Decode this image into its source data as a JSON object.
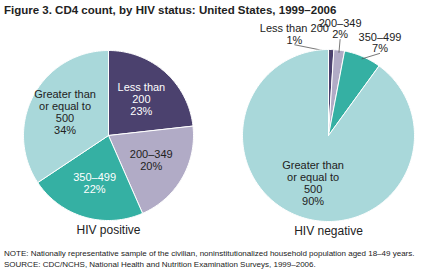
{
  "figure": {
    "title": "Figure 3. CD4 count, by HIV status: United States, 1999–2006",
    "notes": [
      "NOTE: Nationally representative sample of the civilian, noninstitutionalized household population aged 18–49 years.",
      "SOURCE: CDC/NCHS, National Health and Nutrition Examination Surveys, 1999–2006."
    ]
  },
  "chart_data": [
    {
      "type": "pie",
      "title": "HIV positive",
      "categories": [
        "Less than 200",
        "200–349",
        "350–499",
        "Greater than or equal to 500"
      ],
      "values": [
        23,
        20,
        22,
        34
      ],
      "value_labels": [
        "23%",
        "20%",
        "22%",
        "34%"
      ],
      "colors": [
        "#4b416e",
        "#b1abc6",
        "#35b0a3",
        "#a9d8da"
      ],
      "data_labels": true
    },
    {
      "type": "pie",
      "title": "HIV negative",
      "categories": [
        "Less than 200",
        "200–349",
        "350–499",
        "Greater than or equal to 500"
      ],
      "values": [
        1,
        2,
        7,
        90
      ],
      "value_labels": [
        "1%",
        "2%",
        "7%",
        "90%"
      ],
      "colors": [
        "#4b416e",
        "#b1abc6",
        "#35b0a3",
        "#a9d8da"
      ],
      "data_labels": true
    }
  ]
}
